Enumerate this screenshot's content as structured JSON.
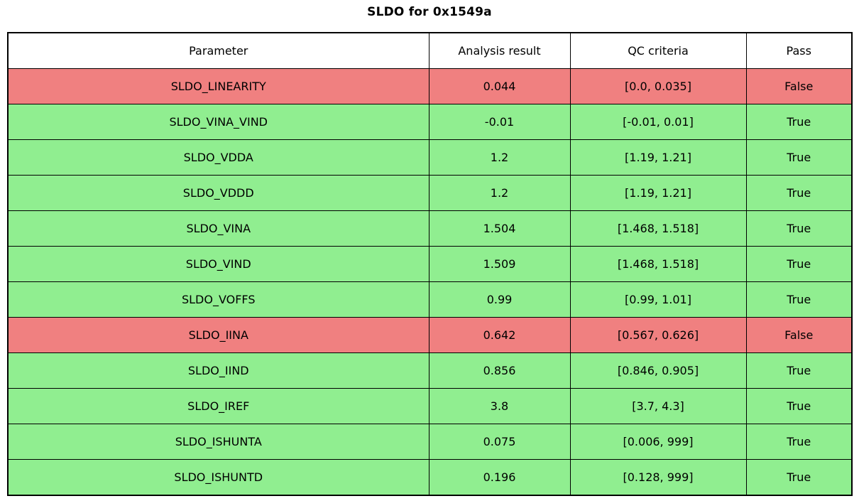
{
  "title": "SLDO for 0x1549a",
  "chart_data": {
    "type": "table",
    "title": "SLDO for 0x1549a",
    "columns": [
      "Parameter",
      "Analysis result",
      "QC criteria",
      "Pass"
    ],
    "rows": [
      {
        "parameter": "SLDO_LINEARITY",
        "result": "0.044",
        "criteria": "[0.0, 0.035]",
        "pass": "False"
      },
      {
        "parameter": "SLDO_VINA_VIND",
        "result": "-0.01",
        "criteria": "[-0.01, 0.01]",
        "pass": "True"
      },
      {
        "parameter": "SLDO_VDDA",
        "result": "1.2",
        "criteria": "[1.19, 1.21]",
        "pass": "True"
      },
      {
        "parameter": "SLDO_VDDD",
        "result": "1.2",
        "criteria": "[1.19, 1.21]",
        "pass": "True"
      },
      {
        "parameter": "SLDO_VINA",
        "result": "1.504",
        "criteria": "[1.468, 1.518]",
        "pass": "True"
      },
      {
        "parameter": "SLDO_VIND",
        "result": "1.509",
        "criteria": "[1.468, 1.518]",
        "pass": "True"
      },
      {
        "parameter": "SLDO_VOFFS",
        "result": "0.99",
        "criteria": "[0.99, 1.01]",
        "pass": "True"
      },
      {
        "parameter": "SLDO_IINA",
        "result": "0.642",
        "criteria": "[0.567, 0.626]",
        "pass": "False"
      },
      {
        "parameter": "SLDO_IIND",
        "result": "0.856",
        "criteria": "[0.846, 0.905]",
        "pass": "True"
      },
      {
        "parameter": "SLDO_IREF",
        "result": "3.8",
        "criteria": "[3.7, 4.3]",
        "pass": "True"
      },
      {
        "parameter": "SLDO_ISHUNTA",
        "result": "0.075",
        "criteria": "[0.006, 999]",
        "pass": "True"
      },
      {
        "parameter": "SLDO_ISHUNTD",
        "result": "0.196",
        "criteria": "[0.128, 999]",
        "pass": "True"
      }
    ],
    "colors": {
      "pass_row_bg": "#90ee90",
      "fail_row_bg": "#f08080",
      "border": "#000000",
      "header_bg": "#ffffff"
    },
    "legend_position": "none",
    "grid": true
  }
}
